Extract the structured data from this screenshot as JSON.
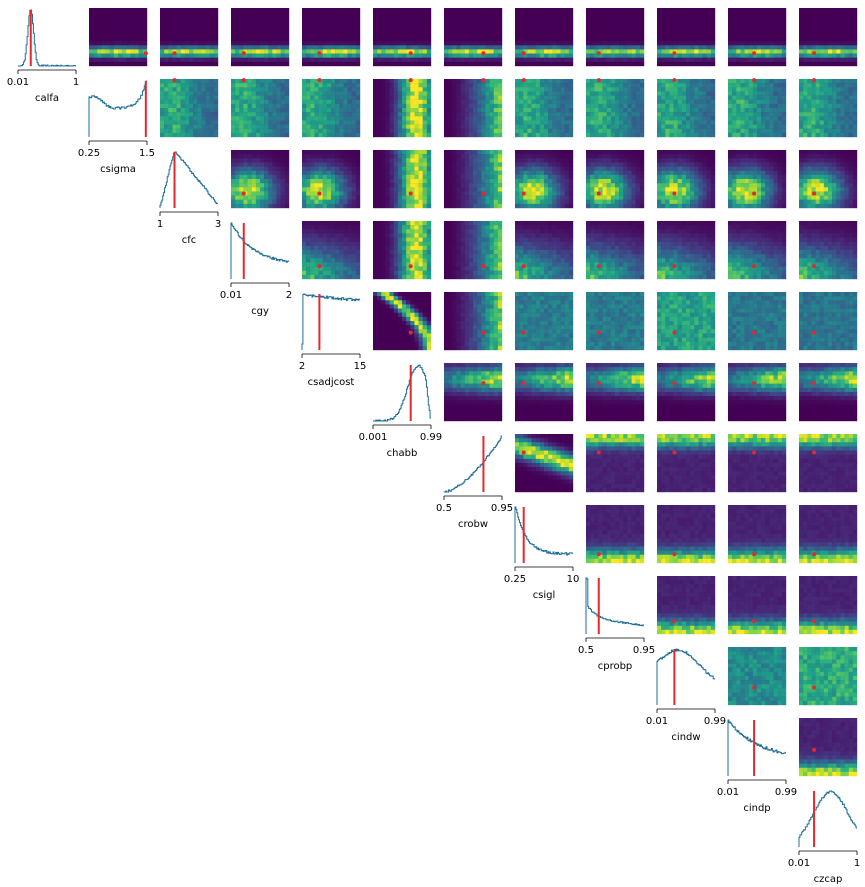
{
  "chart_data": {
    "type": "heatmap",
    "layout": "corner",
    "title": "",
    "parameters": [
      {
        "name": "calfa",
        "range": [
          "0.01",
          "1"
        ],
        "truth": 0.22
      },
      {
        "name": "csigma",
        "range": [
          "0.25",
          "1.5"
        ],
        "truth": 0.98
      },
      {
        "name": "cfc",
        "range": [
          "1",
          "3"
        ],
        "truth": 0.25
      },
      {
        "name": "cgy",
        "range": [
          "0.01",
          "2"
        ],
        "truth": 0.22
      },
      {
        "name": "csadjcost",
        "range": [
          "2",
          "15"
        ],
        "truth": 0.3
      },
      {
        "name": "chabb",
        "range": [
          "0.001",
          "0.99"
        ],
        "truth": 0.65
      },
      {
        "name": "crobw",
        "range": [
          "0.5",
          "0.95"
        ],
        "truth": 0.68
      },
      {
        "name": "csigl",
        "range": [
          "0.25",
          "10"
        ],
        "truth": 0.15
      },
      {
        "name": "cprobp",
        "range": [
          "0.5",
          "0.95"
        ],
        "truth": 0.22
      },
      {
        "name": "cindw",
        "range": [
          "0.01",
          "0.99"
        ],
        "truth": 0.3
      },
      {
        "name": "cindp",
        "range": [
          "0.01",
          "0.99"
        ],
        "truth": 0.45
      },
      {
        "name": "czcap",
        "range": [
          "0.01",
          "1"
        ],
        "truth": 0.26
      }
    ],
    "histogram_color": "#1f6f99",
    "truth_color": "#e8262b",
    "colormap": "viridis",
    "grid": false,
    "legend": "none"
  }
}
